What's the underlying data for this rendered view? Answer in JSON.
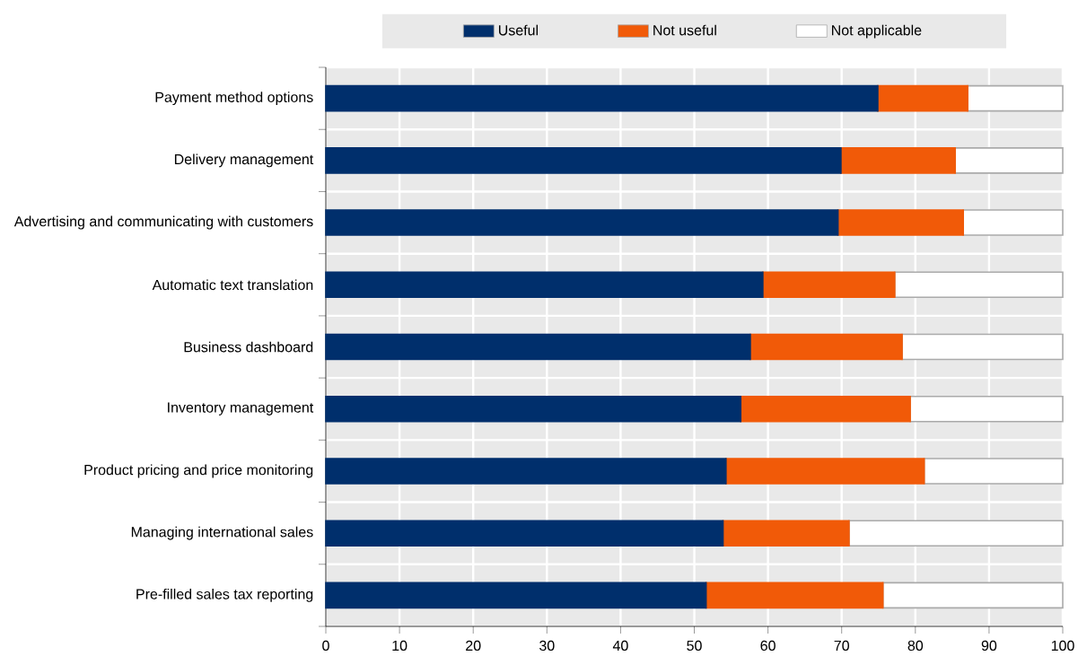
{
  "chart_data": {
    "type": "bar",
    "orientation": "horizontal",
    "stacked": true,
    "categories": [
      "Payment method options",
      "Delivery management",
      "Advertising and communicating with customers",
      "Automatic text translation",
      "Business dashboard",
      "Inventory management",
      "Product pricing and price monitoring",
      "Managing international sales",
      "Pre-filled sales tax reporting"
    ],
    "series": [
      {
        "name": "Useful",
        "color": "#002f6c",
        "values": [
          74.9,
          69.9,
          69.5,
          59.3,
          57.6,
          56.3,
          54.3,
          53.9,
          51.6
        ]
      },
      {
        "name": "Not useful",
        "color": "#f15a08",
        "values": [
          12.2,
          15.5,
          17.0,
          17.9,
          20.6,
          23.0,
          26.9,
          17.1,
          24.0
        ]
      },
      {
        "name": "Not applicable",
        "color": "#ffffff",
        "values": [
          12.9,
          14.6,
          13.5,
          22.8,
          21.8,
          20.7,
          18.8,
          29.0,
          24.4
        ]
      }
    ],
    "xlim": [
      0,
      100
    ],
    "xticks": [
      0,
      10,
      20,
      30,
      40,
      50,
      60,
      70,
      80,
      90,
      100
    ],
    "grid": true,
    "legend": "top"
  }
}
